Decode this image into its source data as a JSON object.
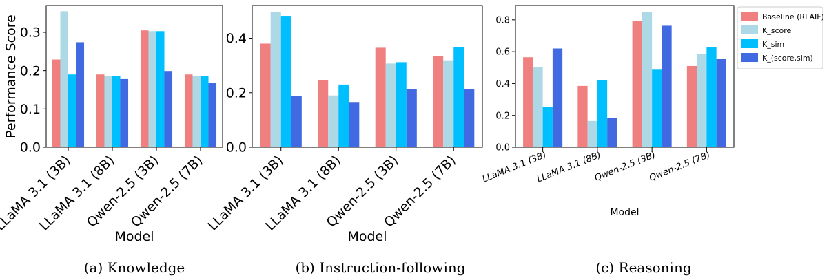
{
  "legend": {
    "entries": [
      "Baseline (RLAIF)",
      "K_score",
      "K_sim",
      "K_(score,sim)"
    ],
    "colors": [
      "#f08080",
      "#add8e6",
      "#00bfff",
      "#4169e1"
    ],
    "placement": "right of panel (c)"
  },
  "chart_data": [
    {
      "type": "bar",
      "caption": "(a) Knowledge",
      "xlabel": "Model",
      "ylabel": "Performance Score",
      "categories": [
        "LLaMA 3.1 (3B)",
        "LLaMA 3.1 (8B)",
        "Qwen-2.5 (3B)",
        "Qwen-2.5 (7B)"
      ],
      "series": [
        {
          "name": "Baseline (RLAIF)",
          "values": [
            0.229,
            0.19,
            0.305,
            0.19
          ]
        },
        {
          "name": "K_score",
          "values": [
            0.355,
            0.185,
            0.303,
            0.185
          ]
        },
        {
          "name": "K_sim",
          "values": [
            0.19,
            0.185,
            0.303,
            0.185
          ]
        },
        {
          "name": "K_(score,sim)",
          "values": [
            0.274,
            0.178,
            0.199,
            0.167
          ]
        }
      ],
      "ylim": [
        0,
        0.37
      ],
      "yticks": [
        "0.0",
        "0.1",
        "0.2",
        "0.3"
      ],
      "tick_rotation": 45,
      "grid": false
    },
    {
      "type": "bar",
      "caption": "(b) Instruction-following",
      "xlabel": "Model",
      "ylabel": "",
      "categories": [
        "LLaMA 3.1 (3B)",
        "LLaMA 3.1 (8B)",
        "Qwen-2.5 (3B)",
        "Qwen-2.5 (7B)"
      ],
      "series": [
        {
          "name": "Baseline (RLAIF)",
          "values": [
            0.38,
            0.245,
            0.365,
            0.335
          ]
        },
        {
          "name": "K_score",
          "values": [
            0.497,
            0.19,
            0.307,
            0.319
          ]
        },
        {
          "name": "K_sim",
          "values": [
            0.482,
            0.23,
            0.312,
            0.367
          ]
        },
        {
          "name": "K_(score,sim)",
          "values": [
            0.187,
            0.166,
            0.212,
            0.212
          ]
        }
      ],
      "ylim": [
        0,
        0.52
      ],
      "yticks": [
        "0.0",
        "0.2",
        "0.4"
      ],
      "tick_rotation": 45,
      "grid": false
    },
    {
      "type": "bar",
      "caption": "(c) Reasoning",
      "xlabel": "Model",
      "ylabel": "",
      "categories": [
        "LLaMA 3.1 (3B)",
        "LLaMA 3.1 (8B)",
        "Qwen-2.5 (3B)",
        "Qwen-2.5 (7B)"
      ],
      "series": [
        {
          "name": "Baseline (RLAIF)",
          "values": [
            0.565,
            0.385,
            0.795,
            0.51
          ]
        },
        {
          "name": "K_score",
          "values": [
            0.505,
            0.165,
            0.85,
            0.585
          ]
        },
        {
          "name": "K_sim",
          "values": [
            0.255,
            0.42,
            0.487,
            0.63
          ]
        },
        {
          "name": "K_(score,sim)",
          "values": [
            0.62,
            0.183,
            0.763,
            0.553
          ]
        }
      ],
      "ylim": [
        0,
        0.89
      ],
      "yticks": [
        "0.0",
        "0.2",
        "0.4",
        "0.6",
        "0.8"
      ],
      "tick_rotation": 22,
      "tick_italic": true,
      "grid": false
    }
  ]
}
